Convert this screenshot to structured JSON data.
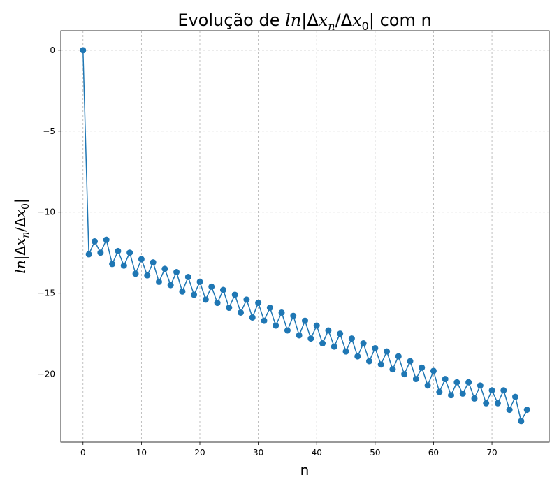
{
  "chart_data": {
    "type": "line",
    "title_prefix": "Evolução de ",
    "title_suffix": " com n",
    "xlabel": "n",
    "math_label": {
      "ln": "ln",
      "bar": "|",
      "delta": "Δ",
      "x": "x",
      "n": "n",
      "zero": "0",
      "slash": "/"
    },
    "xlim": [
      -3.8,
      79.8
    ],
    "ylim": [
      -24.2,
      1.2
    ],
    "grid": true,
    "color": "#1f77b4",
    "xticks": [
      0,
      10,
      20,
      30,
      40,
      50,
      60,
      70
    ],
    "yticks": [
      0,
      -5,
      -10,
      -15,
      -20
    ],
    "ytick_labels": [
      "0",
      "−5",
      "−10",
      "−15",
      "−20"
    ],
    "x": [
      0,
      1,
      2,
      3,
      4,
      5,
      6,
      7,
      8,
      9,
      10,
      11,
      12,
      13,
      14,
      15,
      16,
      17,
      18,
      19,
      20,
      21,
      22,
      23,
      24,
      25,
      26,
      27,
      28,
      29,
      30,
      31,
      32,
      33,
      34,
      35,
      36,
      37,
      38,
      39,
      40,
      41,
      42,
      43,
      44,
      45,
      46,
      47,
      48,
      49,
      50,
      51,
      52,
      53,
      54,
      55,
      56,
      57,
      58,
      59,
      60,
      61,
      62,
      63,
      64,
      65,
      66,
      67,
      68,
      69,
      70,
      71,
      72,
      73,
      74,
      75,
      76
    ],
    "y": [
      0,
      -12.6,
      -11.8,
      -12.5,
      -11.7,
      -13.2,
      -12.4,
      -13.3,
      -12.5,
      -13.8,
      -12.9,
      -13.9,
      -13.1,
      -14.3,
      -13.5,
      -14.5,
      -13.7,
      -14.9,
      -14.0,
      -15.1,
      -14.3,
      -15.4,
      -14.6,
      -15.6,
      -14.8,
      -15.9,
      -15.1,
      -16.2,
      -15.4,
      -16.5,
      -15.6,
      -16.7,
      -15.9,
      -17.0,
      -16.2,
      -17.3,
      -16.4,
      -17.6,
      -16.7,
      -17.8,
      -17.0,
      -18.1,
      -17.3,
      -18.3,
      -17.5,
      -18.6,
      -17.8,
      -18.9,
      -18.1,
      -19.2,
      -18.4,
      -19.4,
      -18.6,
      -19.7,
      -18.9,
      -20.0,
      -19.2,
      -20.3,
      -19.6,
      -20.7,
      -19.8,
      -21.1,
      -20.3,
      -21.3,
      -20.5,
      -21.2,
      -20.5,
      -21.5,
      -20.7,
      -21.8,
      -21.0,
      -21.8,
      -21.0,
      -22.2,
      -21.4,
      -22.9,
      -22.2
    ]
  }
}
